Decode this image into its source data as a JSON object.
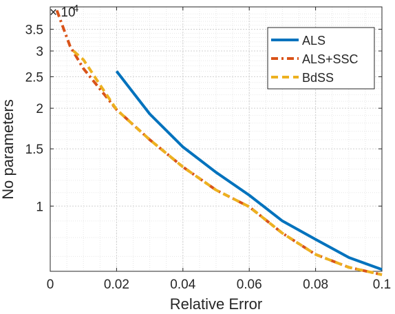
{
  "chart_data": {
    "type": "line",
    "xlabel": "Relative Error",
    "ylabel": "No parameters",
    "y_scale": "log",
    "y_exponent_label": "× 10",
    "y_exponent_power": "4",
    "xlim": [
      0,
      0.1
    ],
    "ylim": [
      6300,
      41000
    ],
    "grid": "on (major and minor, dotted)",
    "legend_position": "top-right",
    "x_ticks": [
      0,
      0.02,
      0.04,
      0.06,
      0.08,
      0.1
    ],
    "x_tick_labels": [
      "0",
      "0.02",
      "0.04",
      "0.06",
      "0.08",
      "0.1"
    ],
    "y_ticks": [
      10000,
      15000,
      20000,
      25000,
      30000,
      35000
    ],
    "y_tick_labels": [
      "1",
      "1.5",
      "2",
      "2.5",
      "3",
      "3.5"
    ],
    "series": [
      {
        "name": "ALS",
        "color": "#0072BD",
        "style": "solid",
        "x": [
          0.02,
          0.03,
          0.04,
          0.05,
          0.06,
          0.07,
          0.08,
          0.09,
          0.1
        ],
        "y": [
          26000,
          19200,
          15200,
          12700,
          10800,
          9000,
          7900,
          6950,
          6380
        ]
      },
      {
        "name": "ALS+SSC",
        "color": "#D95319",
        "style": "dash-dot",
        "x": [
          0.002,
          0.006,
          0.01,
          0.02,
          0.03,
          0.04,
          0.05,
          0.06,
          0.07,
          0.08,
          0.09,
          0.1
        ],
        "y": [
          40000,
          31000,
          26500,
          19800,
          16000,
          13200,
          11200,
          9950,
          8250,
          7100,
          6480,
          6150
        ]
      },
      {
        "name": "BdSS",
        "color": "#EDB120",
        "style": "dashed",
        "x": [
          0.007,
          0.01,
          0.012,
          0.015,
          0.02,
          0.03,
          0.04,
          0.05,
          0.06,
          0.07,
          0.08,
          0.09,
          0.1
        ],
        "y": [
          30000,
          28200,
          26300,
          23600,
          19800,
          16000,
          13200,
          11200,
          9950,
          8250,
          7100,
          6480,
          6150
        ]
      }
    ]
  }
}
